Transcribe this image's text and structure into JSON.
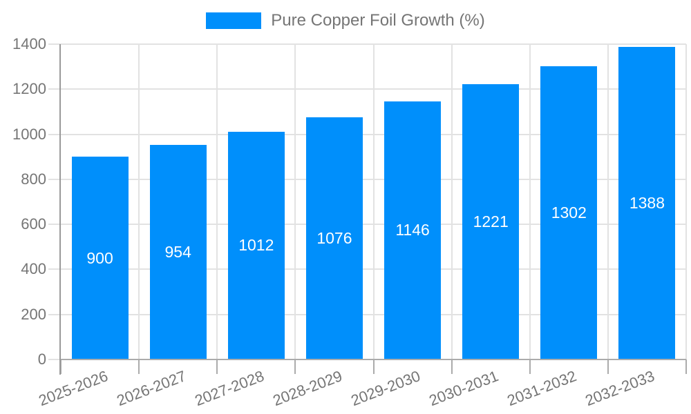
{
  "chart_data": {
    "type": "bar",
    "title": "Pure Copper Foil Growth (%)",
    "legend": {
      "position": "top",
      "entries": [
        "Pure Copper Foil Growth (%)"
      ]
    },
    "categories": [
      "2025-2026",
      "2026-2027",
      "2027-2028",
      "2028-2029",
      "2029-2030",
      "2030-2031",
      "2031-2032",
      "2032-2033"
    ],
    "series": [
      {
        "name": "Pure Copper Foil Growth (%)",
        "values": [
          900,
          954,
          1012,
          1076,
          1146,
          1221,
          1302,
          1388
        ]
      }
    ],
    "data_labels_shown": true,
    "data_labels_position": "center-inside",
    "xlabel": "",
    "ylabel": "",
    "ylim": [
      0,
      1400
    ],
    "yticks": [
      0,
      200,
      400,
      600,
      800,
      1000,
      1200,
      1400
    ],
    "grid": {
      "horizontal": true,
      "vertical": true
    },
    "style": {
      "bar_color": "#008FFB",
      "data_label_color": "#ffffff",
      "axis_text_color": "#757575",
      "grid_color": "#e2e2e2",
      "axis_line_color": "#ababab",
      "y_axis_line_color": "#999999",
      "background": "#ffffff"
    }
  }
}
